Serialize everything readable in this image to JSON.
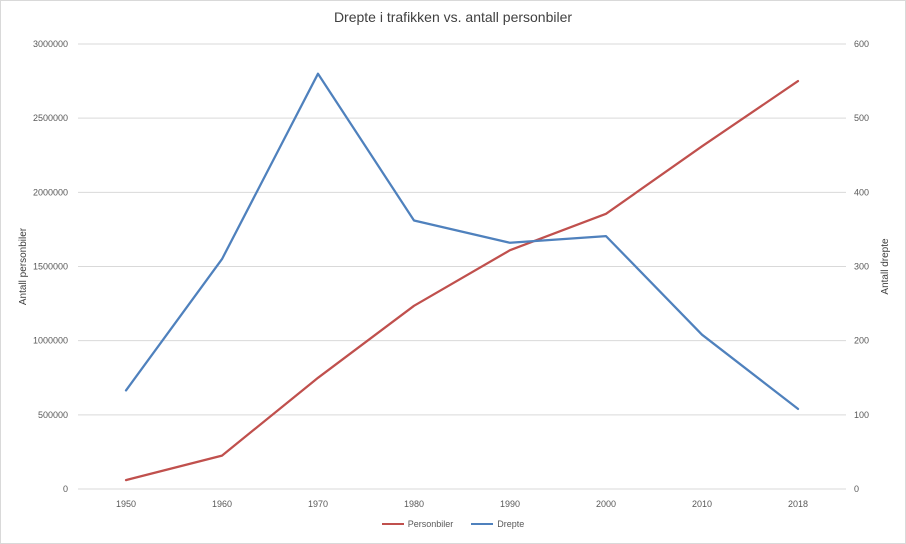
{
  "chart_data": {
    "type": "line",
    "title": "Drepte i trafikken vs. antall personbiler",
    "categories": [
      "1950",
      "1960",
      "1970",
      "1980",
      "1990",
      "2000",
      "2010",
      "2018"
    ],
    "y_left": {
      "label": "Antall personbiler",
      "min": 0,
      "max": 3000000,
      "ticks": [
        "0",
        "500000",
        "1000000",
        "1500000",
        "2000000",
        "2500000",
        "3000000"
      ]
    },
    "y_right": {
      "label": "Antall drepte",
      "min": 0,
      "max": 600,
      "ticks": [
        "0",
        "100",
        "200",
        "300",
        "400",
        "500",
        "600"
      ]
    },
    "grid": true,
    "legend_position": "bottom",
    "series": [
      {
        "name": "Personbiler",
        "axis": "left",
        "color": "#c0504d",
        "values": [
          60000,
          225000,
          750000,
          1235000,
          1610000,
          1855000,
          2310000,
          2750000
        ]
      },
      {
        "name": "Drepte",
        "axis": "right",
        "color": "#4f81bd",
        "values": [
          133,
          310,
          560,
          362,
          332,
          341,
          208,
          108
        ]
      }
    ]
  }
}
